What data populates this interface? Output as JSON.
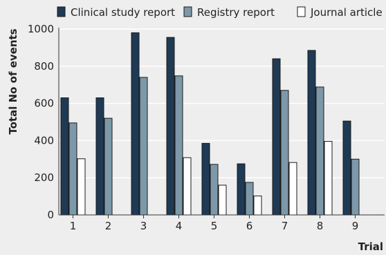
{
  "chart_data": {
    "type": "bar",
    "title": "",
    "xlabel": "Trial",
    "ylabel": "Total No of events",
    "categories": [
      "1",
      "2",
      "3",
      "4",
      "5",
      "6",
      "7",
      "8",
      "9"
    ],
    "ylim": [
      0,
      1000
    ],
    "yticks": [
      "0",
      "200",
      "400",
      "600",
      "800",
      "1000"
    ],
    "grid": "horizontal",
    "legend_position": "top",
    "series": [
      {
        "name": "Clinical study report",
        "color": "#1f3a54",
        "values": [
          630,
          630,
          980,
          955,
          385,
          275,
          840,
          885,
          505
        ]
      },
      {
        "name": "Registry report",
        "color": "#7d98a8",
        "values": [
          495,
          520,
          740,
          748,
          272,
          175,
          670,
          688,
          300
        ]
      },
      {
        "name": "Journal article",
        "color": "#ffffff",
        "values": [
          302,
          null,
          null,
          308,
          160,
          102,
          282,
          396,
          null
        ]
      }
    ]
  }
}
